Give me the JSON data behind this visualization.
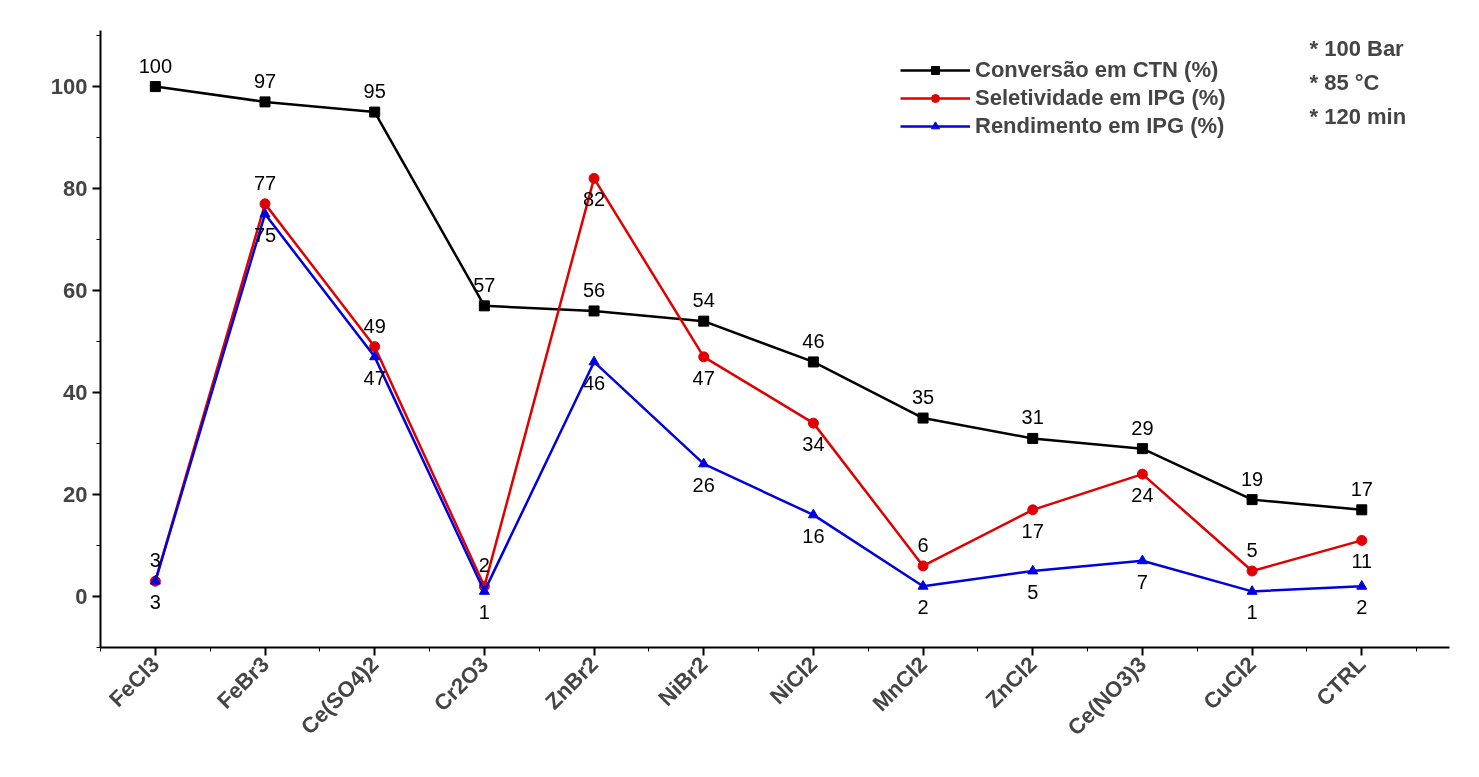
{
  "chart_data": {
    "type": "line",
    "categories": [
      "FeCl3",
      "FeBr3",
      "Ce(SO4)2",
      "Cr2O3",
      "ZnBr2",
      "NiBr2",
      "NiCl2",
      "MnCl2",
      "ZnCl2",
      "Ce(NO3)3",
      "CuCl2",
      "CTRL"
    ],
    "series": [
      {
        "name": "Conversão em CTN (%)",
        "color": "#000000",
        "marker": "square",
        "values": [
          100,
          97,
          95,
          57,
          56,
          54,
          46,
          35,
          31,
          29,
          19,
          17
        ]
      },
      {
        "name": "Seletividade em IPG (%)",
        "color": "#e00000",
        "marker": "circle",
        "values": [
          3,
          77,
          49,
          2,
          82,
          47,
          34,
          6,
          17,
          24,
          5,
          11
        ]
      },
      {
        "name": "Rendimento em IPG (%)",
        "color": "#0000e0",
        "marker": "triangle",
        "values": [
          3,
          75,
          47,
          1,
          46,
          26,
          16,
          2,
          5,
          7,
          1,
          2
        ]
      }
    ],
    "ylim": [
      -10,
      111
    ],
    "yticks": [
      0,
      20,
      40,
      60,
      80,
      100
    ],
    "grid": false,
    "legend": "top right",
    "data_labels": true,
    "line_style": "solid",
    "annotations": [
      "* 100 Bar",
      "* 85 °C",
      "* 120 min"
    ]
  }
}
